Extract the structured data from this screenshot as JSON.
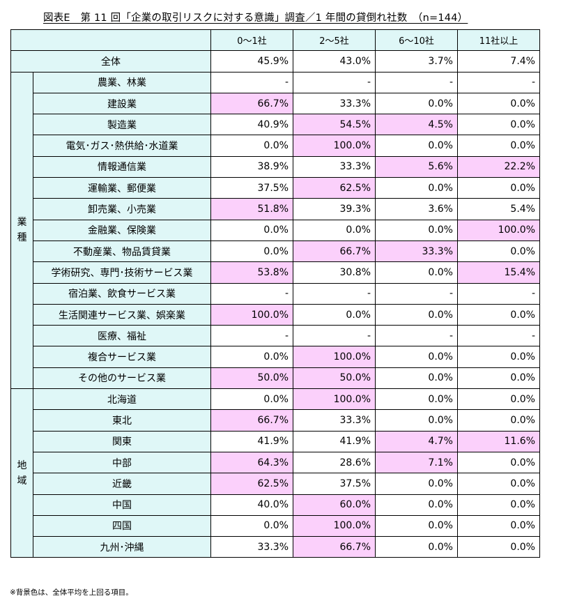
{
  "title": "図表E　第 11 回「企業の取引リスクに対する意識」調査／1 年間の貸倒れ社数　（n=144）",
  "columns": [
    "0～1社",
    "2～5社",
    "6～10社",
    "11社以上"
  ],
  "total": {
    "label": "全体",
    "values": [
      "45.9%",
      "43.0%",
      "3.7%",
      "7.4%"
    ]
  },
  "groups": [
    {
      "label": "業\n種",
      "rows": [
        {
          "label": "農業、林業",
          "values": [
            "-",
            "-",
            "-",
            "-"
          ],
          "highlight": [
            false,
            false,
            false,
            false
          ]
        },
        {
          "label": "建設業",
          "values": [
            "66.7%",
            "33.3%",
            "0.0%",
            "0.0%"
          ],
          "highlight": [
            true,
            false,
            false,
            false
          ]
        },
        {
          "label": "製造業",
          "values": [
            "40.9%",
            "54.5%",
            "4.5%",
            "0.0%"
          ],
          "highlight": [
            false,
            true,
            true,
            false
          ]
        },
        {
          "label": "電気･ガス･熱供給･水道業",
          "values": [
            "0.0%",
            "100.0%",
            "0.0%",
            "0.0%"
          ],
          "highlight": [
            false,
            true,
            false,
            false
          ]
        },
        {
          "label": "情報通信業",
          "values": [
            "38.9%",
            "33.3%",
            "5.6%",
            "22.2%"
          ],
          "highlight": [
            false,
            false,
            true,
            true
          ]
        },
        {
          "label": "運輸業、郵便業",
          "values": [
            "37.5%",
            "62.5%",
            "0.0%",
            "0.0%"
          ],
          "highlight": [
            false,
            true,
            false,
            false
          ]
        },
        {
          "label": "卸売業、小売業",
          "values": [
            "51.8%",
            "39.3%",
            "3.6%",
            "5.4%"
          ],
          "highlight": [
            true,
            false,
            false,
            false
          ]
        },
        {
          "label": "金融業、保険業",
          "values": [
            "0.0%",
            "0.0%",
            "0.0%",
            "100.0%"
          ],
          "highlight": [
            false,
            false,
            false,
            true
          ]
        },
        {
          "label": "不動産業、物品賃貸業",
          "values": [
            "0.0%",
            "66.7%",
            "33.3%",
            "0.0%"
          ],
          "highlight": [
            false,
            true,
            true,
            false
          ]
        },
        {
          "label": "学術研究、専門･技術サービス業",
          "values": [
            "53.8%",
            "30.8%",
            "0.0%",
            "15.4%"
          ],
          "highlight": [
            true,
            false,
            false,
            true
          ]
        },
        {
          "label": "宿泊業、飲食サービス業",
          "values": [
            "-",
            "-",
            "-",
            "-"
          ],
          "highlight": [
            false,
            false,
            false,
            false
          ]
        },
        {
          "label": "生活関連サービス業、娯楽業",
          "values": [
            "100.0%",
            "0.0%",
            "0.0%",
            "0.0%"
          ],
          "highlight": [
            true,
            false,
            false,
            false
          ]
        },
        {
          "label": "医療、福祉",
          "values": [
            "-",
            "-",
            "-",
            "-"
          ],
          "highlight": [
            false,
            false,
            false,
            false
          ]
        },
        {
          "label": "複合サービス業",
          "values": [
            "0.0%",
            "100.0%",
            "0.0%",
            "0.0%"
          ],
          "highlight": [
            false,
            true,
            false,
            false
          ]
        },
        {
          "label": "その他のサービス業",
          "values": [
            "50.0%",
            "50.0%",
            "0.0%",
            "0.0%"
          ],
          "highlight": [
            true,
            true,
            false,
            false
          ]
        }
      ]
    },
    {
      "label": "地\n域",
      "rows": [
        {
          "label": "北海道",
          "values": [
            "0.0%",
            "100.0%",
            "0.0%",
            "0.0%"
          ],
          "highlight": [
            false,
            true,
            false,
            false
          ]
        },
        {
          "label": "東北",
          "values": [
            "66.7%",
            "33.3%",
            "0.0%",
            "0.0%"
          ],
          "highlight": [
            true,
            false,
            false,
            false
          ]
        },
        {
          "label": "関東",
          "values": [
            "41.9%",
            "41.9%",
            "4.7%",
            "11.6%"
          ],
          "highlight": [
            false,
            false,
            true,
            true
          ]
        },
        {
          "label": "中部",
          "values": [
            "64.3%",
            "28.6%",
            "7.1%",
            "0.0%"
          ],
          "highlight": [
            true,
            false,
            true,
            false
          ]
        },
        {
          "label": "近畿",
          "values": [
            "62.5%",
            "37.5%",
            "0.0%",
            "0.0%"
          ],
          "highlight": [
            true,
            false,
            false,
            false
          ]
        },
        {
          "label": "中国",
          "values": [
            "40.0%",
            "60.0%",
            "0.0%",
            "0.0%"
          ],
          "highlight": [
            false,
            true,
            false,
            false
          ]
        },
        {
          "label": "四国",
          "values": [
            "0.0%",
            "100.0%",
            "0.0%",
            "0.0%"
          ],
          "highlight": [
            false,
            true,
            false,
            false
          ]
        },
        {
          "label": "九州･沖縄",
          "values": [
            "33.3%",
            "66.7%",
            "0.0%",
            "0.0%"
          ],
          "highlight": [
            false,
            true,
            false,
            false
          ]
        }
      ]
    }
  ],
  "note": "※背景色は、全体平均を上回る項目。",
  "colors": {
    "header_bg": "#dff7f7",
    "highlight_bg": "#fbd0fb",
    "border": "#000000"
  }
}
